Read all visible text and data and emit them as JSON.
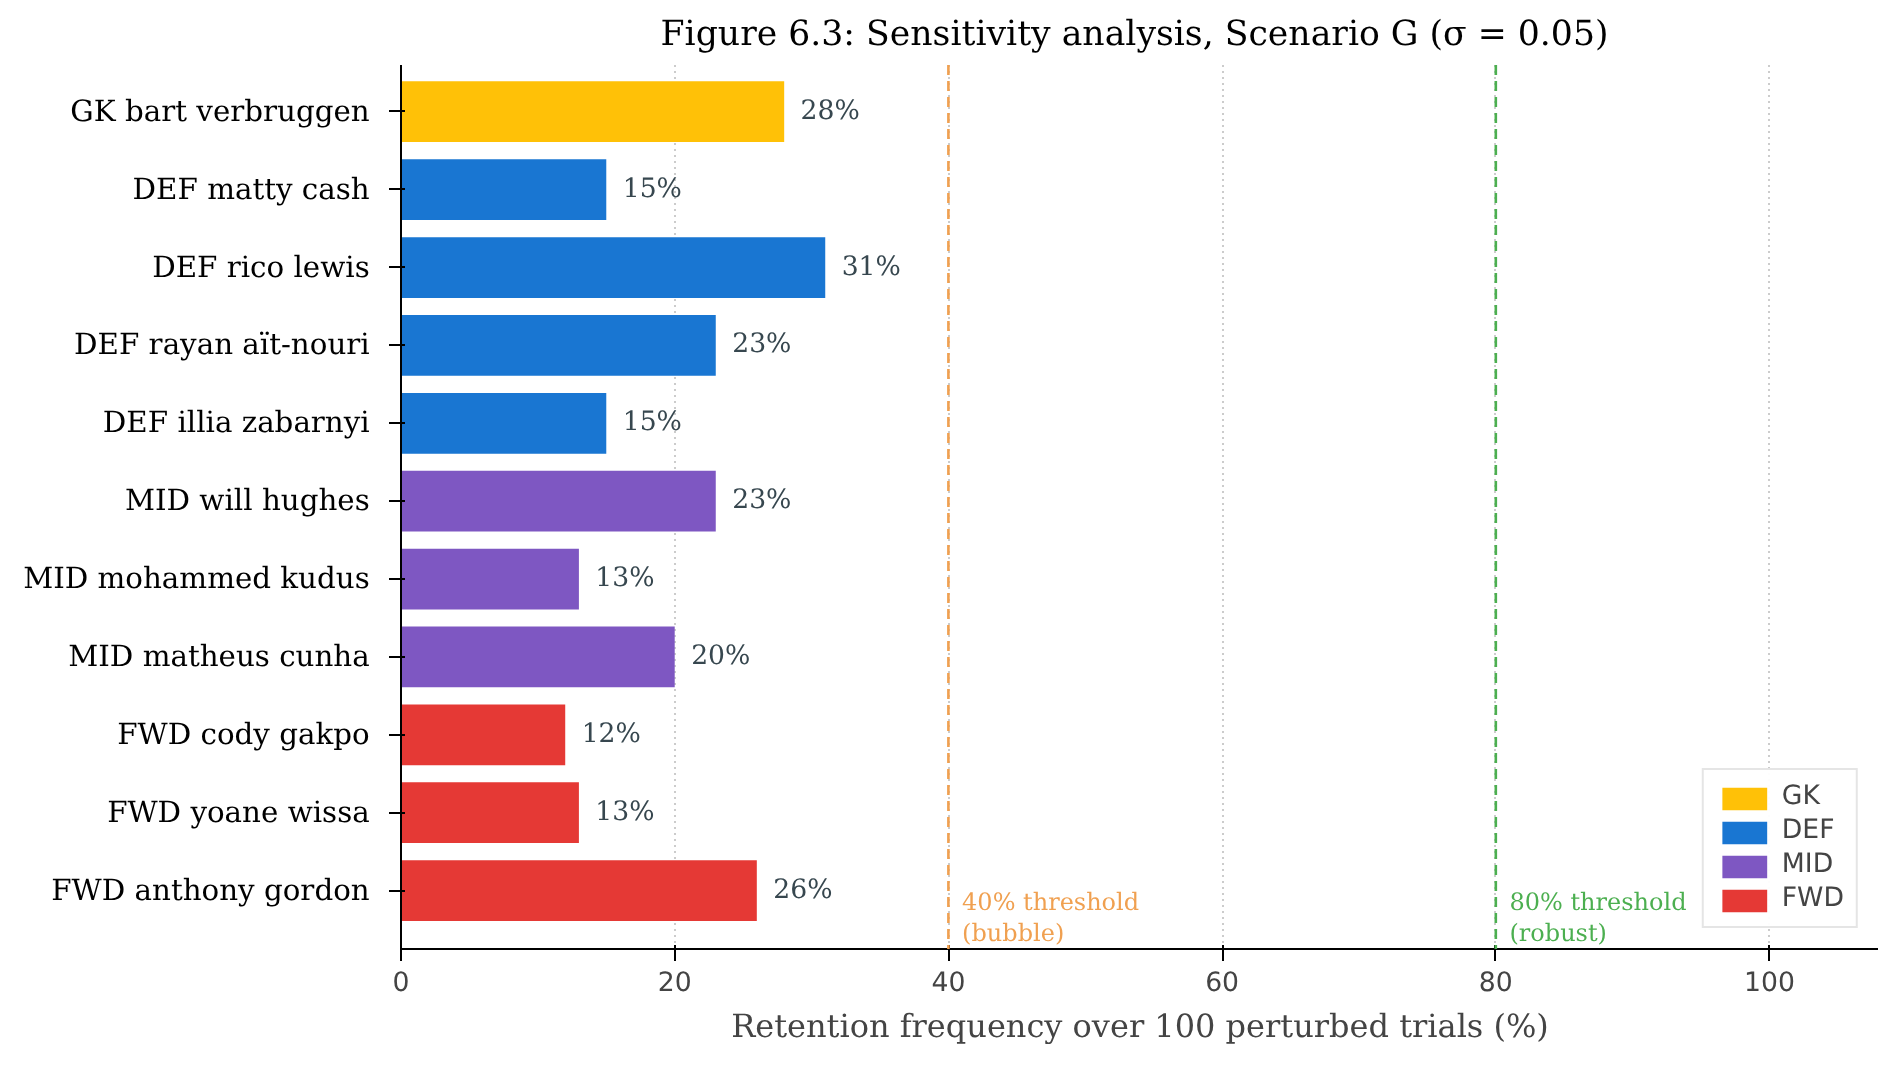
{
  "chart_data": {
    "type": "bar",
    "orientation": "horizontal",
    "title": "Figure 6.3:  Sensitivity analysis, Scenario G (σ = 0.05)",
    "xlabel": "Retention frequency over 100 perturbed trials (%)",
    "categories": [
      "GK  bart verbruggen",
      "DEF  matty cash",
      "DEF  rico lewis",
      "DEF  rayan aït-nouri",
      "DEF  illia zabarnyi",
      "MID  will hughes",
      "MID  mohammed kudus",
      "MID  matheus cunha",
      "FWD  cody gakpo",
      "FWD  yoane wissa",
      "FWD  anthony gordon"
    ],
    "series": [
      {
        "name": "GK",
        "color": "#ffc107",
        "values": [
          28,
          null,
          null,
          null,
          null,
          null,
          null,
          null,
          null,
          null,
          null
        ],
        "value_labels": [
          "28%",
          null,
          null,
          null,
          null,
          null,
          null,
          null,
          null,
          null,
          null
        ]
      },
      {
        "name": "DEF",
        "color": "#1976d2",
        "values": [
          null,
          15,
          31,
          23,
          15,
          null,
          null,
          null,
          null,
          null,
          null
        ],
        "value_labels": [
          null,
          "15%",
          "31%",
          "23%",
          "15%",
          null,
          null,
          null,
          null,
          null,
          null
        ]
      },
      {
        "name": "MID",
        "color": "#7e57c2",
        "values": [
          null,
          null,
          null,
          null,
          null,
          23,
          13,
          20,
          null,
          null,
          null
        ],
        "value_labels": [
          null,
          null,
          null,
          null,
          null,
          "23%",
          "13%",
          "20%",
          null,
          null,
          null
        ]
      },
      {
        "name": "FWD",
        "color": "#e53935",
        "values": [
          null,
          null,
          null,
          null,
          null,
          null,
          null,
          null,
          12,
          13,
          26
        ],
        "value_labels": [
          null,
          null,
          null,
          null,
          null,
          null,
          null,
          null,
          "12%",
          "13%",
          "26%"
        ]
      }
    ],
    "xlim": [
      0,
      108
    ],
    "xticks": [
      0,
      20,
      40,
      60,
      80,
      100
    ],
    "ref_lines": [
      {
        "axis": "x",
        "value": 40,
        "label": "40% threshold\n(bubble)",
        "color": "#f0a050",
        "line_style": "dashed"
      },
      {
        "axis": "x",
        "value": 80,
        "label": "80% threshold\n(robust)",
        "color": "#4caf50",
        "line_style": "dashed"
      }
    ],
    "grid": "x",
    "legend": "bottom right"
  }
}
